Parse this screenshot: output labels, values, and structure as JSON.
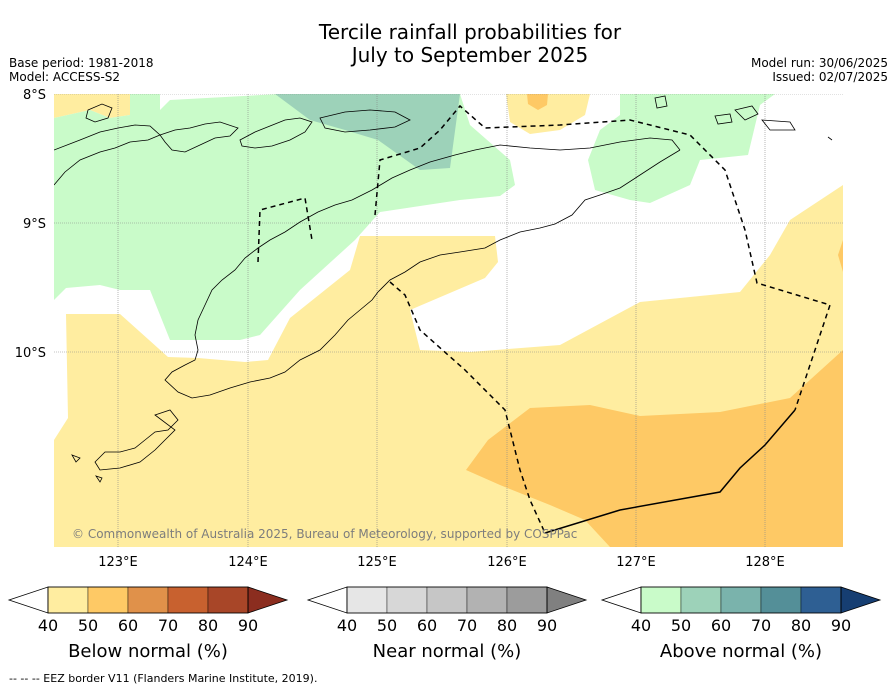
{
  "title": {
    "line1": "Tercile rainfall probabilities for",
    "line2": "July to September 2025"
  },
  "meta": {
    "base_period": "Base period: 1981-2018",
    "model": "Model: ACCESS-S2",
    "model_run": "Model run: 30/06/2025",
    "issued": "Issued: 02/07/2025"
  },
  "map": {
    "lat_labels": [
      "8°S",
      "9°S",
      "10°S"
    ],
    "lon_labels": [
      "123°E",
      "124°E",
      "125°E",
      "126°E",
      "127°E",
      "128°E"
    ],
    "copyright": "© Commonwealth of Australia 2025, Bureau of Meteorology, supported by COSPPac",
    "colors": {
      "below_50": "#ffeda0",
      "below_60": "#fec965",
      "above_50": "#c9fbc9",
      "above_60": "#9dd2b9",
      "border": "#000000"
    }
  },
  "legends": {
    "below": {
      "label": "Below normal (%)",
      "ticks": [
        "40",
        "50",
        "60",
        "70",
        "80",
        "90"
      ],
      "colors": [
        "#ffeda0",
        "#fec965",
        "#e0914a",
        "#c8612f",
        "#a84628",
        "#8b2d1f"
      ]
    },
    "near": {
      "label": "Near normal (%)",
      "ticks": [
        "40",
        "50",
        "60",
        "70",
        "80",
        "90"
      ],
      "colors": [
        "#e6e6e6",
        "#d7d7d7",
        "#c6c6c6",
        "#b2b2b2",
        "#9c9c9c",
        "#808080"
      ]
    },
    "above": {
      "label": "Above normal (%)",
      "ticks": [
        "40",
        "50",
        "60",
        "70",
        "80",
        "90"
      ],
      "colors": [
        "#c9fbc9",
        "#9dd2b9",
        "#7ab3ac",
        "#548f98",
        "#2e5f93",
        "#163e72"
      ]
    }
  },
  "footer": "--  --  -- EEZ border V11 (Flanders Marine Institute, 2019)."
}
